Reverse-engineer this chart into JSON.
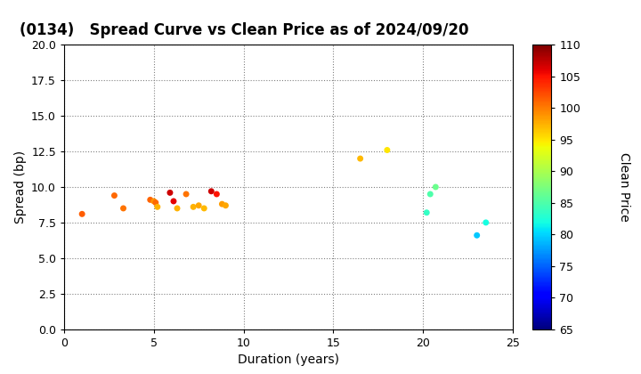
{
  "title": "(0134)   Spread Curve vs Clean Price as of 2024/09/20",
  "xlabel": "Duration (years)",
  "ylabel": "Spread (bp)",
  "colorbar_label": "Clean Price",
  "xlim": [
    0,
    25
  ],
  "ylim": [
    0.0,
    20.0
  ],
  "yticks": [
    0.0,
    2.5,
    5.0,
    7.5,
    10.0,
    12.5,
    15.0,
    17.5,
    20.0
  ],
  "xticks": [
    0,
    5,
    10,
    15,
    20,
    25
  ],
  "cmap_min": 65,
  "cmap_max": 110,
  "colorbar_ticks": [
    65,
    70,
    75,
    80,
    85,
    90,
    95,
    100,
    105,
    110
  ],
  "points": [
    {
      "duration": 1.0,
      "spread": 8.1,
      "price": 101.5
    },
    {
      "duration": 2.8,
      "spread": 9.4,
      "price": 101.0
    },
    {
      "duration": 3.3,
      "spread": 8.5,
      "price": 100.5
    },
    {
      "duration": 4.8,
      "spread": 9.1,
      "price": 101.2
    },
    {
      "duration": 5.0,
      "spread": 9.0,
      "price": 99.0
    },
    {
      "duration": 5.1,
      "spread": 8.9,
      "price": 101.0
    },
    {
      "duration": 5.2,
      "spread": 8.6,
      "price": 97.5
    },
    {
      "duration": 5.9,
      "spread": 9.6,
      "price": 107.0
    },
    {
      "duration": 6.1,
      "spread": 9.0,
      "price": 106.0
    },
    {
      "duration": 6.3,
      "spread": 8.5,
      "price": 97.5
    },
    {
      "duration": 6.8,
      "spread": 9.5,
      "price": 100.5
    },
    {
      "duration": 7.2,
      "spread": 8.6,
      "price": 97.5
    },
    {
      "duration": 7.5,
      "spread": 8.7,
      "price": 98.0
    },
    {
      "duration": 7.8,
      "spread": 8.5,
      "price": 97.0
    },
    {
      "duration": 8.2,
      "spread": 9.7,
      "price": 107.0
    },
    {
      "duration": 8.5,
      "spread": 9.5,
      "price": 105.0
    },
    {
      "duration": 8.8,
      "spread": 8.8,
      "price": 98.5
    },
    {
      "duration": 9.0,
      "spread": 8.7,
      "price": 98.0
    },
    {
      "duration": 16.5,
      "spread": 12.0,
      "price": 97.0
    },
    {
      "duration": 18.0,
      "spread": 12.6,
      "price": 95.0
    },
    {
      "duration": 20.2,
      "spread": 8.2,
      "price": 83.5
    },
    {
      "duration": 20.4,
      "spread": 9.5,
      "price": 85.0
    },
    {
      "duration": 20.7,
      "spread": 10.0,
      "price": 86.5
    },
    {
      "duration": 23.0,
      "spread": 6.6,
      "price": 79.5
    },
    {
      "duration": 23.5,
      "spread": 7.5,
      "price": 82.0
    }
  ],
  "bg_color": "#ffffff",
  "title_fontsize": 12,
  "axis_fontsize": 10,
  "scatter_size": 25
}
